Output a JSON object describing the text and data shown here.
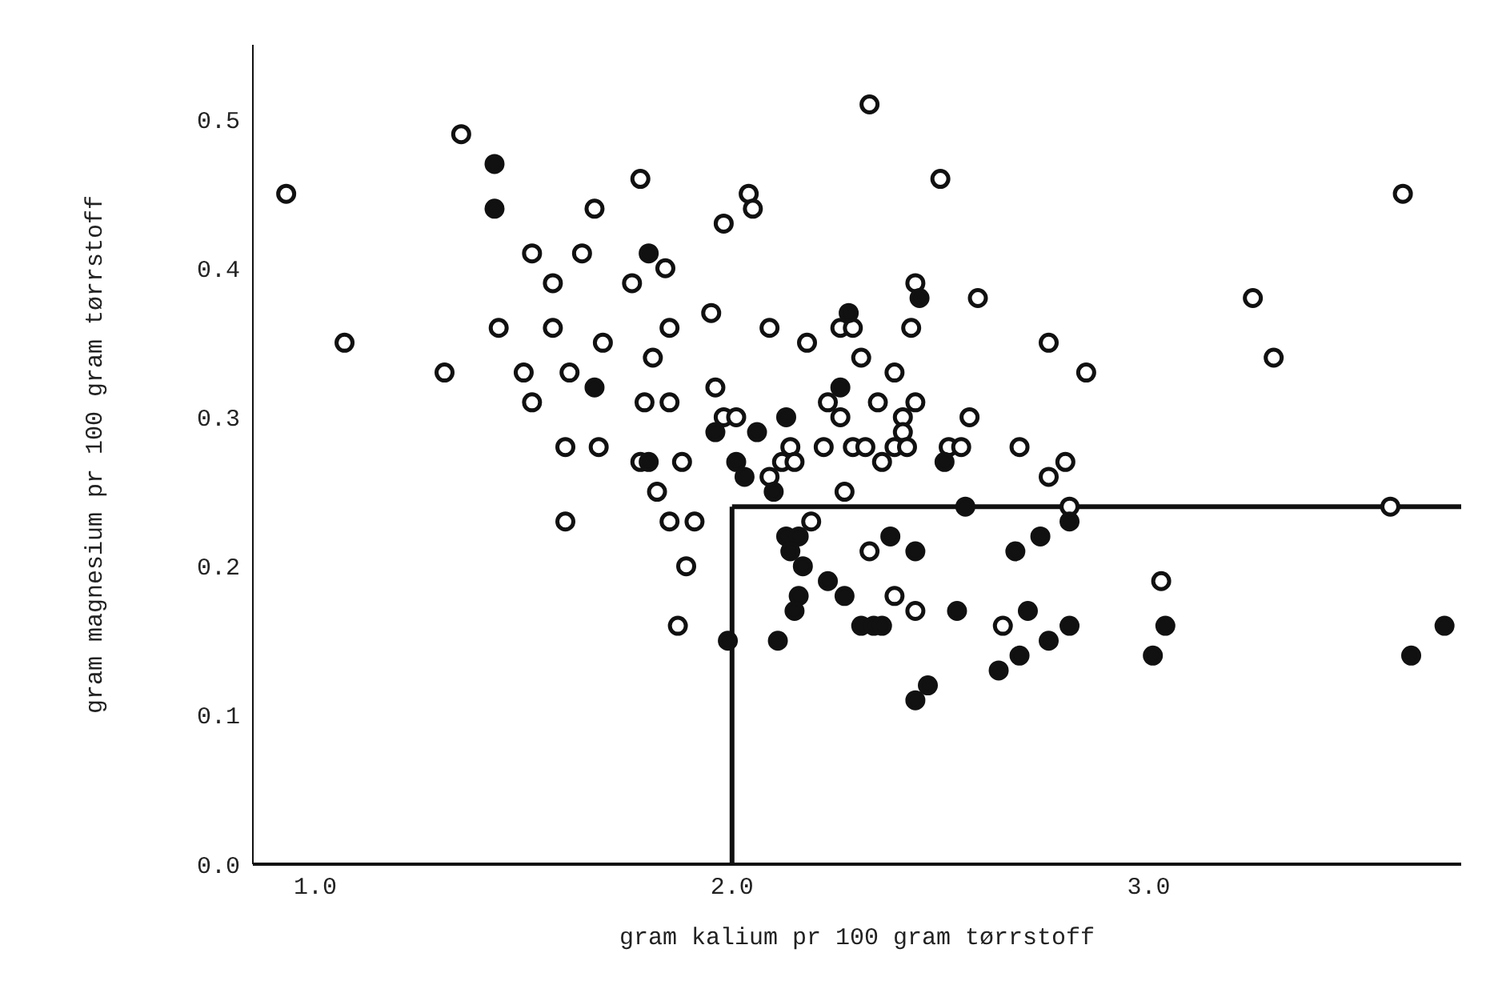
{
  "chart_data": {
    "type": "scatter",
    "xlabel": "gram kalium pr 100 gram tørrstoff",
    "ylabel": "gram magnesium pr 100 gram tørrstoff",
    "xlim": [
      0.85,
      3.75
    ],
    "xticks": [
      {
        "value": 1,
        "label": "1.0"
      },
      {
        "value": 2,
        "label": "2.0"
      },
      {
        "value": 3,
        "label": "3.0"
      }
    ],
    "ylim": [
      0,
      0.55
    ],
    "yticks": [
      {
        "value": 0,
        "label": "0.0"
      },
      {
        "value": 0.1,
        "label": "0.1"
      },
      {
        "value": 0.2,
        "label": "0.2"
      },
      {
        "value": 0.3,
        "label": "0.3"
      },
      {
        "value": 0.4,
        "label": "0.4"
      },
      {
        "value": 0.5,
        "label": "0.5"
      }
    ],
    "grid": false,
    "legend": false,
    "marker": "circle",
    "ref_lines": [
      {
        "axis": "x",
        "value": 2.0,
        "label": null,
        "color": "#111111"
      },
      {
        "axis": "y",
        "value": 0.24,
        "label": null,
        "color": "#111111"
      }
    ],
    "series": [
      {
        "color": "#ffffff",
        "x": [
          0.93,
          1.35,
          1.78,
          1.67,
          1.98,
          1.52,
          1.64,
          1.84,
          1.57,
          1.76,
          1.44,
          1.57,
          1.85,
          1.95,
          1.07,
          1.69,
          1.81,
          1.31,
          1.5,
          1.61,
          1.96,
          1.52,
          1.79,
          1.85,
          1.98,
          1.6,
          1.68,
          1.78,
          1.88,
          1.82,
          1.6,
          1.85,
          1.91,
          1.89,
          1.87,
          2.5,
          2.04,
          2.05,
          2.44,
          2.59,
          2.09,
          2.26,
          2.29,
          2.43,
          2.18,
          2.76,
          2.85,
          2.31,
          2.39,
          2.23,
          2.35,
          2.44,
          2.26,
          2.41,
          2.57,
          2.01,
          2.41,
          2.14,
          2.22,
          2.29,
          2.32,
          2.39,
          2.42,
          2.36,
          2.52,
          2.55,
          2.69,
          2.8,
          2.76,
          2.12,
          2.15,
          2.09,
          2.27,
          2.81,
          2.19,
          2.33,
          2.39,
          2.44,
          2.65,
          3.61,
          3.25,
          3.3,
          3.58,
          3.03,
          2.33
        ],
        "values": [
          0.45,
          0.49,
          0.46,
          0.44,
          0.43,
          0.41,
          0.41,
          0.4,
          0.39,
          0.39,
          0.36,
          0.36,
          0.36,
          0.37,
          0.35,
          0.35,
          0.34,
          0.33,
          0.33,
          0.33,
          0.32,
          0.31,
          0.31,
          0.31,
          0.3,
          0.28,
          0.28,
          0.27,
          0.27,
          0.25,
          0.23,
          0.23,
          0.23,
          0.2,
          0.16,
          0.46,
          0.45,
          0.44,
          0.39,
          0.38,
          0.36,
          0.36,
          0.36,
          0.36,
          0.35,
          0.35,
          0.33,
          0.34,
          0.33,
          0.31,
          0.31,
          0.31,
          0.3,
          0.3,
          0.3,
          0.3,
          0.29,
          0.28,
          0.28,
          0.28,
          0.28,
          0.28,
          0.28,
          0.27,
          0.28,
          0.28,
          0.28,
          0.27,
          0.26,
          0.27,
          0.27,
          0.26,
          0.25,
          0.24,
          0.23,
          0.21,
          0.18,
          0.17,
          0.16,
          0.45,
          0.38,
          0.34,
          0.24,
          0.19,
          0.51
        ]
      },
      {
        "color": "#111111",
        "x": [
          1.43,
          1.43,
          1.8,
          1.67,
          1.96,
          1.8,
          1.99,
          2.45,
          2.28,
          2.26,
          2.06,
          2.13,
          2.51,
          2.01,
          2.03,
          2.1,
          2.56,
          2.81,
          2.74,
          2.13,
          2.16,
          2.38,
          2.44,
          2.14,
          2.17,
          2.68,
          2.23,
          2.27,
          2.16,
          2.15,
          2.54,
          2.71,
          2.81,
          2.31,
          2.34,
          2.36,
          2.11,
          2.76,
          2.69,
          2.64,
          2.47,
          2.44,
          3.04,
          3.01,
          3.71,
          3.63
        ],
        "values": [
          0.47,
          0.44,
          0.41,
          0.32,
          0.29,
          0.27,
          0.15,
          0.38,
          0.37,
          0.32,
          0.29,
          0.3,
          0.27,
          0.27,
          0.26,
          0.25,
          0.24,
          0.23,
          0.22,
          0.22,
          0.22,
          0.22,
          0.21,
          0.21,
          0.2,
          0.21,
          0.19,
          0.18,
          0.18,
          0.17,
          0.17,
          0.17,
          0.16,
          0.16,
          0.16,
          0.16,
          0.15,
          0.15,
          0.14,
          0.13,
          0.12,
          0.11,
          0.16,
          0.14,
          0.16,
          0.14
        ]
      }
    ]
  }
}
